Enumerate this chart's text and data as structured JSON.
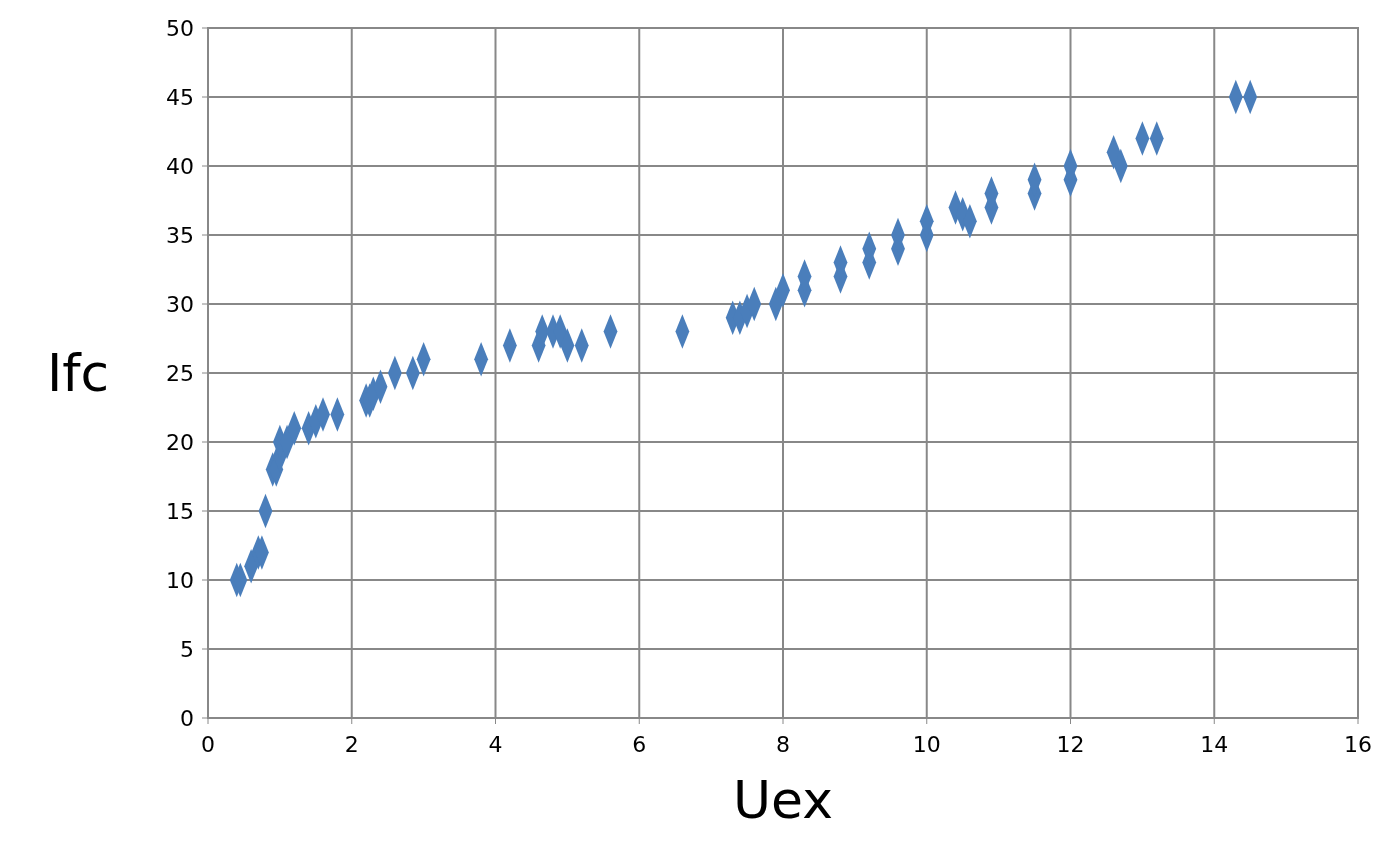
{
  "chart_data": {
    "type": "scatter",
    "xlabel": "Uex",
    "ylabel": "Ifc",
    "xlim": [
      0,
      16
    ],
    "xticks": [
      0,
      2,
      4,
      6,
      8,
      10,
      12,
      14,
      16
    ],
    "ylim": [
      0,
      50
    ],
    "yticks": [
      0,
      5,
      10,
      15,
      20,
      25,
      30,
      35,
      40,
      45,
      50
    ],
    "grid": true,
    "marker": "diamond",
    "series": [
      {
        "color": "#4a7ebb",
        "x": [
          0.4,
          0.45,
          0.6,
          0.7,
          0.75,
          0.8,
          0.9,
          0.95,
          1.0,
          1.0,
          1.1,
          1.2,
          1.4,
          1.5,
          1.6,
          1.8,
          2.2,
          2.25,
          2.3,
          2.4,
          2.6,
          2.85,
          3.0,
          3.8,
          4.2,
          4.6,
          4.65,
          4.8,
          4.9,
          5.0,
          5.2,
          5.6,
          6.6,
          7.3,
          7.4,
          7.5,
          7.6,
          7.9,
          8.0,
          8.3,
          8.3,
          8.8,
          8.8,
          9.2,
          9.2,
          9.6,
          9.6,
          10.0,
          10.0,
          10.4,
          10.5,
          10.6,
          10.9,
          10.9,
          11.5,
          11.5,
          12.0,
          12.0,
          12.6,
          12.7,
          13.0,
          13.2,
          14.3,
          14.5
        ],
        "values": [
          10,
          10,
          11,
          12,
          12,
          15,
          18,
          18,
          19,
          20,
          20,
          21,
          21,
          21.5,
          22,
          22,
          23,
          23,
          23.5,
          24,
          25,
          25,
          26,
          26,
          27,
          27,
          28,
          28,
          28,
          27,
          27,
          28,
          28,
          29,
          29,
          29.5,
          30,
          30,
          31,
          31,
          32,
          32,
          33,
          33,
          34,
          34,
          35,
          35,
          36,
          37,
          36.5,
          36,
          37,
          38,
          38,
          39,
          39,
          40,
          41,
          40,
          42,
          42,
          45,
          45
        ]
      }
    ]
  }
}
